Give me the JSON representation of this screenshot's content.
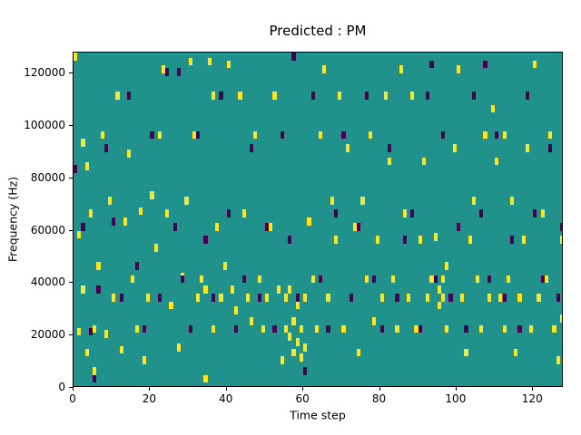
{
  "chart_data": {
    "type": "heatmap",
    "title": "Predicted : PM",
    "xlabel": "Time step",
    "ylabel": "Frequency (Hz)",
    "xlim": [
      0,
      128
    ],
    "ylim": [
      0,
      128000
    ],
    "xticks": [
      0,
      20,
      40,
      60,
      80,
      100,
      120
    ],
    "yticks": [
      0,
      20000,
      40000,
      60000,
      80000,
      100000,
      120000
    ],
    "grid": false,
    "legend": "none",
    "colors": {
      "background": "#21918c",
      "high": "#fde725",
      "low": "#440154",
      "axis": "#000000"
    },
    "cell_size": {
      "x": 1,
      "y": 3000
    },
    "yellow_cells": [
      [
        0,
        127000
      ],
      [
        1,
        57000
      ],
      [
        1,
        20000
      ],
      [
        2,
        92000
      ],
      [
        2,
        36000
      ],
      [
        3,
        83000
      ],
      [
        3,
        12000
      ],
      [
        4,
        65000
      ],
      [
        5,
        21000
      ],
      [
        5,
        5000
      ],
      [
        6,
        45000
      ],
      [
        7,
        95000
      ],
      [
        8,
        19000
      ],
      [
        9,
        70000
      ],
      [
        10,
        33000
      ],
      [
        11,
        110000
      ],
      [
        12,
        13000
      ],
      [
        13,
        62000
      ],
      [
        14,
        88000
      ],
      [
        15,
        40000
      ],
      [
        16,
        21000
      ],
      [
        17,
        66000
      ],
      [
        18,
        9000
      ],
      [
        19,
        33000
      ],
      [
        20,
        72000
      ],
      [
        21,
        52000
      ],
      [
        22,
        95000
      ],
      [
        23,
        120000
      ],
      [
        24,
        65000
      ],
      [
        25,
        30000
      ],
      [
        26,
        60000
      ],
      [
        27,
        14000
      ],
      [
        28,
        41000
      ],
      [
        29,
        70000
      ],
      [
        30,
        123000
      ],
      [
        31,
        95000
      ],
      [
        32,
        33000
      ],
      [
        33,
        40000
      ],
      [
        34,
        2000
      ],
      [
        34,
        36000
      ],
      [
        35,
        123000
      ],
      [
        36,
        110000
      ],
      [
        36,
        21000
      ],
      [
        37,
        60000
      ],
      [
        38,
        33000
      ],
      [
        39,
        45000
      ],
      [
        40,
        122000
      ],
      [
        41,
        36000
      ],
      [
        42,
        28000
      ],
      [
        43,
        110000
      ],
      [
        44,
        65000
      ],
      [
        45,
        33000
      ],
      [
        46,
        24000
      ],
      [
        47,
        95000
      ],
      [
        48,
        40000
      ],
      [
        49,
        21000
      ],
      [
        50,
        33000
      ],
      [
        51,
        60000
      ],
      [
        52,
        110000
      ],
      [
        53,
        36000
      ],
      [
        54,
        9000
      ],
      [
        55,
        21000
      ],
      [
        55,
        33000
      ],
      [
        56,
        18000
      ],
      [
        56,
        36000
      ],
      [
        57,
        12000
      ],
      [
        57,
        24000
      ],
      [
        58,
        16000
      ],
      [
        58,
        30000
      ],
      [
        59,
        10000
      ],
      [
        59,
        21000
      ],
      [
        60,
        14000
      ],
      [
        60,
        33000
      ],
      [
        61,
        62000
      ],
      [
        62,
        40000
      ],
      [
        63,
        21000
      ],
      [
        64,
        95000
      ],
      [
        65,
        120000
      ],
      [
        66,
        33000
      ],
      [
        67,
        70000
      ],
      [
        68,
        55000
      ],
      [
        69,
        110000
      ],
      [
        70,
        21000
      ],
      [
        71,
        90000
      ],
      [
        72,
        33000
      ],
      [
        73,
        60000
      ],
      [
        74,
        12000
      ],
      [
        75,
        70000
      ],
      [
        76,
        40000
      ],
      [
        77,
        95000
      ],
      [
        78,
        24000
      ],
      [
        79,
        55000
      ],
      [
        80,
        33000
      ],
      [
        81,
        110000
      ],
      [
        82,
        85000
      ],
      [
        83,
        40000
      ],
      [
        84,
        21000
      ],
      [
        85,
        120000
      ],
      [
        86,
        65000
      ],
      [
        87,
        33000
      ],
      [
        88,
        110000
      ],
      [
        89,
        21000
      ],
      [
        90,
        55000
      ],
      [
        91,
        85000
      ],
      [
        92,
        33000
      ],
      [
        93,
        40000
      ],
      [
        94,
        56000
      ],
      [
        95,
        36000
      ],
      [
        95,
        30000
      ],
      [
        96,
        33000
      ],
      [
        96,
        40000
      ],
      [
        97,
        21000
      ],
      [
        97,
        45000
      ],
      [
        98,
        33000
      ],
      [
        99,
        90000
      ],
      [
        100,
        120000
      ],
      [
        101,
        33000
      ],
      [
        102,
        12000
      ],
      [
        103,
        55000
      ],
      [
        104,
        70000
      ],
      [
        105,
        40000
      ],
      [
        106,
        21000
      ],
      [
        107,
        95000
      ],
      [
        108,
        33000
      ],
      [
        109,
        105000
      ],
      [
        110,
        85000
      ],
      [
        111,
        33000
      ],
      [
        112,
        95000
      ],
      [
        112,
        21000
      ],
      [
        113,
        40000
      ],
      [
        114,
        70000
      ],
      [
        115,
        12000
      ],
      [
        116,
        33000
      ],
      [
        117,
        55000
      ],
      [
        118,
        90000
      ],
      [
        119,
        21000
      ],
      [
        120,
        122000
      ],
      [
        121,
        33000
      ],
      [
        122,
        65000
      ],
      [
        123,
        40000
      ],
      [
        124,
        95000
      ],
      [
        125,
        21000
      ],
      [
        126,
        33000
      ],
      [
        126,
        9000
      ],
      [
        127,
        55000
      ],
      [
        127,
        25000
      ]
    ],
    "purple_cells": [
      [
        0,
        82000
      ],
      [
        2,
        60000
      ],
      [
        4,
        20000
      ],
      [
        5,
        2000
      ],
      [
        6,
        36000
      ],
      [
        8,
        90000
      ],
      [
        10,
        62000
      ],
      [
        12,
        33000
      ],
      [
        14,
        110000
      ],
      [
        16,
        45000
      ],
      [
        18,
        21000
      ],
      [
        20,
        95000
      ],
      [
        22,
        33000
      ],
      [
        24,
        119000
      ],
      [
        26,
        60000
      ],
      [
        27,
        119000
      ],
      [
        28,
        40000
      ],
      [
        30,
        21000
      ],
      [
        32,
        95000
      ],
      [
        34,
        55000
      ],
      [
        36,
        33000
      ],
      [
        38,
        110000
      ],
      [
        40,
        65000
      ],
      [
        42,
        21000
      ],
      [
        44,
        40000
      ],
      [
        46,
        90000
      ],
      [
        48,
        33000
      ],
      [
        50,
        60000
      ],
      [
        52,
        21000
      ],
      [
        54,
        95000
      ],
      [
        56,
        55000
      ],
      [
        57,
        125000
      ],
      [
        58,
        33000
      ],
      [
        60,
        5000
      ],
      [
        62,
        110000
      ],
      [
        64,
        40000
      ],
      [
        66,
        21000
      ],
      [
        68,
        65000
      ],
      [
        70,
        95000
      ],
      [
        72,
        33000
      ],
      [
        74,
        60000
      ],
      [
        76,
        110000
      ],
      [
        78,
        40000
      ],
      [
        80,
        21000
      ],
      [
        82,
        90000
      ],
      [
        84,
        33000
      ],
      [
        86,
        55000
      ],
      [
        88,
        65000
      ],
      [
        90,
        21000
      ],
      [
        92,
        110000
      ],
      [
        93,
        122000
      ],
      [
        94,
        40000
      ],
      [
        96,
        95000
      ],
      [
        98,
        33000
      ],
      [
        100,
        60000
      ],
      [
        102,
        21000
      ],
      [
        104,
        110000
      ],
      [
        106,
        65000
      ],
      [
        107,
        122000
      ],
      [
        108,
        40000
      ],
      [
        110,
        95000
      ],
      [
        112,
        33000
      ],
      [
        114,
        55000
      ],
      [
        116,
        21000
      ],
      [
        118,
        110000
      ],
      [
        120,
        65000
      ],
      [
        122,
        40000
      ],
      [
        124,
        90000
      ],
      [
        126,
        33000
      ],
      [
        127,
        60000
      ]
    ]
  }
}
